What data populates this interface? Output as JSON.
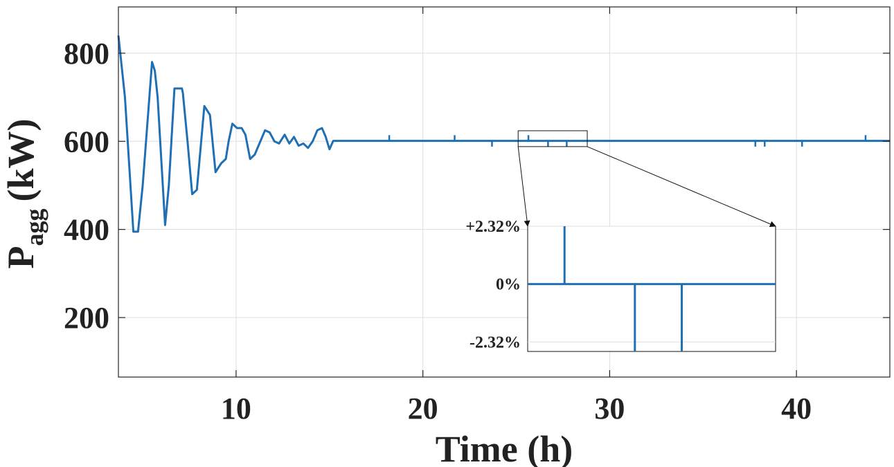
{
  "colors": {
    "line": "#1f6fb5",
    "grid": "#dedede",
    "axis": "#222222",
    "text": "#222222"
  },
  "chart_data": {
    "type": "line",
    "title": "",
    "xlabel": "Time (h)",
    "ylabel": {
      "main": "P",
      "subscript": "agg",
      "unit": "(kW)"
    },
    "xlim": [
      3.7,
      45
    ],
    "ylim": [
      65,
      905
    ],
    "xticks": [
      10,
      20,
      30,
      40
    ],
    "yticks": [
      200,
      400,
      600,
      800
    ],
    "grid": true,
    "series": [
      {
        "name": "P_agg",
        "x": [
          3.7,
          4.05,
          4.5,
          4.75,
          5.0,
          5.5,
          5.65,
          5.8,
          6.2,
          6.4,
          6.7,
          7.1,
          7.15,
          7.4,
          7.65,
          7.9,
          8.3,
          8.45,
          8.6,
          8.9,
          9.2,
          9.45,
          9.6,
          9.8,
          10.05,
          10.3,
          10.5,
          10.75,
          11.0,
          11.3,
          11.55,
          11.8,
          12.05,
          12.3,
          12.6,
          12.85,
          13.1,
          13.35,
          13.6,
          13.85,
          14.1,
          14.35,
          14.6,
          14.8,
          15.0,
          15.2,
          45.0
        ],
        "y": [
          840,
          700,
          395,
          395,
          500,
          780,
          760,
          700,
          410,
          500,
          720,
          720,
          710,
          600,
          480,
          490,
          680,
          670,
          660,
          530,
          550,
          560,
          600,
          640,
          630,
          630,
          615,
          560,
          570,
          600,
          625,
          620,
          600,
          595,
          615,
          595,
          610,
          590,
          595,
          585,
          600,
          625,
          630,
          610,
          582,
          601,
          601
        ]
      }
    ],
    "spikes": [
      {
        "x": 18.2,
        "dy": 13
      },
      {
        "x": 21.7,
        "dy": 13
      },
      {
        "x": 23.7,
        "dy": -13
      },
      {
        "x": 25.65,
        "dy": 13
      },
      {
        "x": 26.7,
        "dy": -13
      },
      {
        "x": 27.7,
        "dy": -13
      },
      {
        "x": 37.8,
        "dy": -13
      },
      {
        "x": 38.3,
        "dy": -13
      },
      {
        "x": 40.3,
        "dy": -13
      },
      {
        "x": 43.7,
        "dy": 13
      }
    ],
    "inset": {
      "source_xlim": [
        25.1,
        28.8
      ],
      "source_ylim": [
        588,
        624
      ],
      "tick_labels": [
        "+2.32%",
        "0%",
        "-2.32%"
      ],
      "ylim": [
        -2.7,
        2.32
      ],
      "yticks": [
        2.32,
        0,
        -2.32
      ],
      "baseline_value": 0,
      "events": [
        {
          "x": 25.65,
          "value": 2.32
        },
        {
          "x": 26.7,
          "value": -2.7
        },
        {
          "x": 27.4,
          "value": -2.7
        }
      ]
    }
  }
}
